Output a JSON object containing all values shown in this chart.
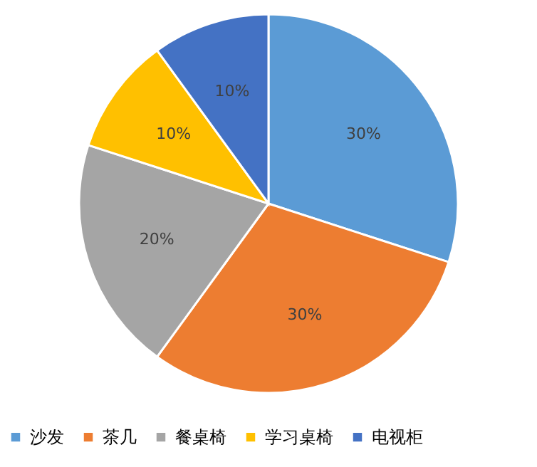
{
  "chart_data": {
    "type": "pie",
    "categories": [
      "沙发",
      "茶几",
      "餐桌椅",
      "学习桌椅",
      "电视柜"
    ],
    "values": [
      30,
      30,
      20,
      10,
      10
    ],
    "colors": [
      "#5b9bd5",
      "#ed7d31",
      "#a5a5a5",
      "#ffc000",
      "#4472c4"
    ],
    "value_labels": [
      "30%",
      "30%",
      "20%",
      "10%",
      "10%"
    ],
    "legend": "bottom"
  }
}
